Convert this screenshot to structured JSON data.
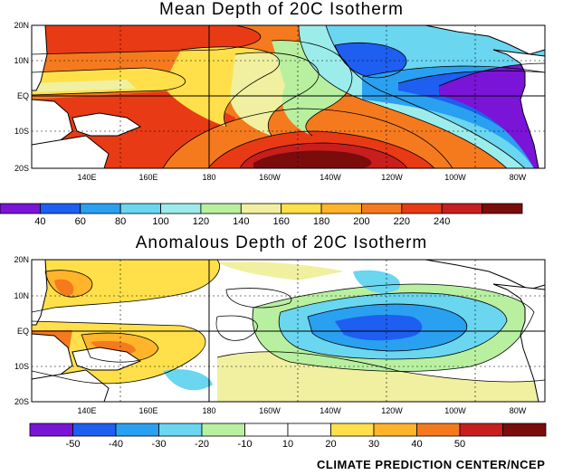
{
  "panels": [
    {
      "id": "mean",
      "title": "Mean Depth of 20C Isotherm",
      "lat_ticks": [
        "20N",
        "10N",
        "EQ",
        "10S",
        "20S"
      ],
      "lon_ticks": [
        "140E",
        "160E",
        "180",
        "160W",
        "140W",
        "120W",
        "100W",
        "80W"
      ],
      "colorbar": {
        "colors": [
          "#7a14d6",
          "#1e5ef0",
          "#2aa0f0",
          "#6ad6f0",
          "#9cecec",
          "#b8f0a0",
          "#f0f0a0",
          "#ffe04a",
          "#ffb42a",
          "#f57a1e",
          "#e83a14",
          "#c81e1e",
          "#7a0c0c"
        ],
        "labels": [
          "40",
          "60",
          "80",
          "100",
          "120",
          "140",
          "160",
          "180",
          "200",
          "220",
          "240"
        ]
      }
    },
    {
      "id": "anomaly",
      "title": "Anomalous Depth of 20C Isotherm",
      "lat_ticks": [
        "20N",
        "10N",
        "EQ",
        "10S",
        "20S"
      ],
      "lon_ticks": [
        "140E",
        "160E",
        "180",
        "160W",
        "140W",
        "120W",
        "100W",
        "80W"
      ],
      "colorbar": {
        "colors": [
          "#7a14d6",
          "#1e5ef0",
          "#2aa0f0",
          "#6ad6f0",
          "#b8f0a0",
          "#ffffff",
          "#ffffff",
          "#ffe04a",
          "#ffb42a",
          "#f57a1e",
          "#c81e1e",
          "#7a0c0c"
        ],
        "labels": [
          "-50",
          "-40",
          "-30",
          "-20",
          "-10",
          "10",
          "20",
          "30",
          "40",
          "50"
        ]
      }
    }
  ],
  "credit": "CLIMATE PREDICTION CENTER/NCEP",
  "land_color": "#ffffff",
  "coast_color": "#000000"
}
